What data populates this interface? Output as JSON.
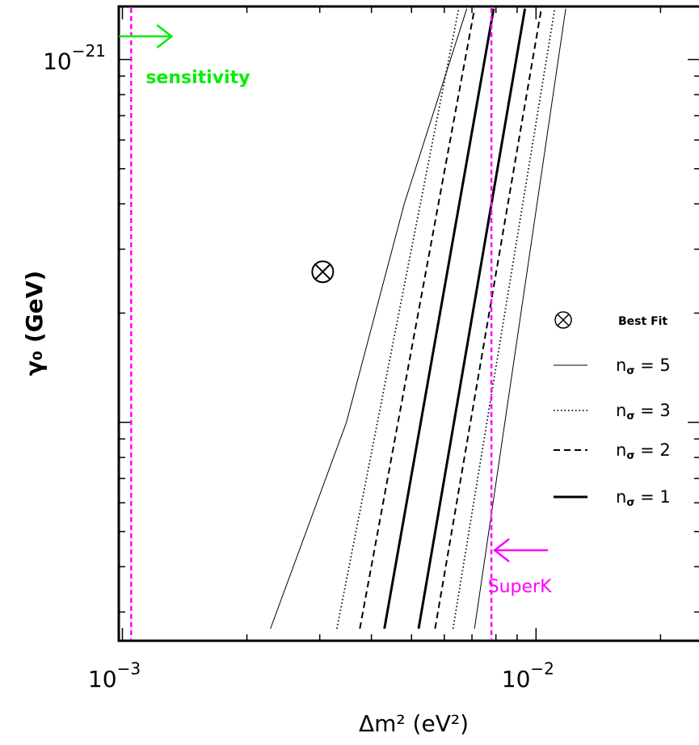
{
  "chart_data": {
    "type": "line",
    "title": "",
    "xlabel": "Δm² (eV²)",
    "ylabel": "γ₀ (GeV)",
    "x_scale": "log",
    "y_scale": "log",
    "xlim": [
      0.00098,
      0.025
    ],
    "ylim": [
      2.5e-23,
      1.4e-21
    ],
    "x_ticks": [
      {
        "value": 0.001,
        "base": "10",
        "exp": "−3"
      },
      {
        "value": 0.01,
        "base": "10",
        "exp": "−2"
      }
    ],
    "y_ticks": [
      {
        "value": 1e-21,
        "base": "10",
        "exp": "−21"
      }
    ],
    "grid": false,
    "series": [
      {
        "name": "n_σ = 5",
        "style": "thin-solid",
        "points": [
          [
            0.00228,
            2.7e-23
          ],
          [
            0.00348,
            1e-22
          ],
          [
            0.0048,
            4e-22
          ],
          [
            0.0068,
            1.38e-21
          ]
        ]
      },
      {
        "name": "n_σ = 3",
        "style": "dotted",
        "points": [
          [
            0.0033,
            2.7e-23
          ],
          [
            0.0065,
            1.38e-21
          ]
        ]
      },
      {
        "name": "n_σ = 2",
        "style": "dashed",
        "points": [
          [
            0.00375,
            2.7e-23
          ],
          [
            0.0071,
            1.38e-21
          ]
        ]
      },
      {
        "name": "n_σ = 1",
        "style": "thick-solid",
        "points": [
          [
            0.0043,
            2.7e-23
          ],
          [
            0.0079,
            1.38e-21
          ]
        ]
      },
      {
        "name": "n_σ = 1",
        "style": "thick-solid",
        "points": [
          [
            0.0052,
            2.7e-23
          ],
          [
            0.0094,
            1.38e-21
          ]
        ]
      },
      {
        "name": "n_σ = 2",
        "style": "dashed",
        "points": [
          [
            0.0057,
            2.7e-23
          ],
          [
            0.0103,
            1.38e-21
          ]
        ]
      },
      {
        "name": "n_σ = 3",
        "style": "dotted",
        "points": [
          [
            0.0063,
            2.7e-23
          ],
          [
            0.0111,
            1.38e-21
          ]
        ]
      },
      {
        "name": "n_σ = 5",
        "style": "thin-solid",
        "points": [
          [
            0.0071,
            2.7e-23
          ],
          [
            0.0118,
            1.38e-21
          ]
        ]
      }
    ],
    "best_fit": {
      "x": 0.00305,
      "y": 2.6e-22
    },
    "vertical_lines": [
      {
        "label": "sensitivity",
        "x": 0.00105,
        "color": "#ff00ff",
        "label_color": "#00ee00",
        "arrow": "right"
      },
      {
        "label": "SuperK",
        "x": 0.0078,
        "color": "#ff00ff",
        "label_color": "#ff00ff",
        "arrow": "left"
      }
    ],
    "legend": {
      "placement": "right",
      "entries": [
        {
          "marker": "⊗",
          "label": "Best Fit",
          "style": "marker"
        },
        {
          "base": "n",
          "sub": "σ",
          "rest": " = 5",
          "style": "thin-solid"
        },
        {
          "base": "n",
          "sub": "σ",
          "rest": " = 3",
          "style": "dotted"
        },
        {
          "base": "n",
          "sub": "σ",
          "rest": " = 2",
          "style": "dashed"
        },
        {
          "base": "n",
          "sub": "σ",
          "rest": " = 1",
          "style": "thick-solid"
        }
      ]
    }
  }
}
